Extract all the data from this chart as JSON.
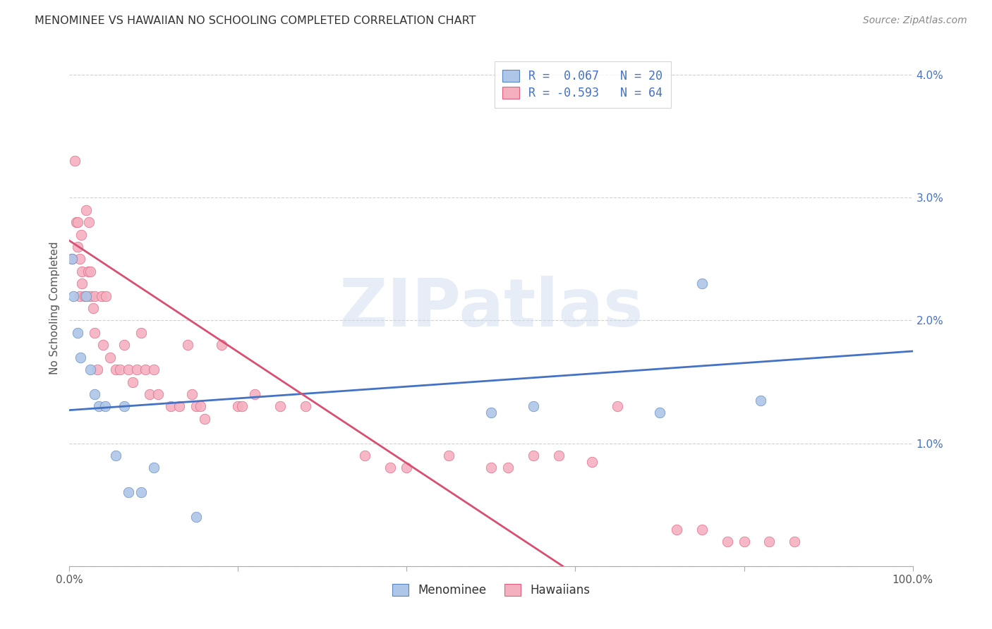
{
  "title": "MENOMINEE VS HAWAIIAN NO SCHOOLING COMPLETED CORRELATION CHART",
  "source": "Source: ZipAtlas.com",
  "ylabel": "No Schooling Completed",
  "watermark": "ZIPatlas",
  "xlim": [
    0.0,
    1.0
  ],
  "ylim": [
    0.0,
    0.042
  ],
  "xtick_positions": [
    0.0,
    0.2,
    0.4,
    0.6,
    0.8,
    1.0
  ],
  "xtick_labels": [
    "0.0%",
    "",
    "",
    "",
    "",
    "100.0%"
  ],
  "ytick_positions": [
    0.0,
    0.01,
    0.02,
    0.03,
    0.04
  ],
  "ytick_labels": [
    "",
    "1.0%",
    "2.0%",
    "3.0%",
    "4.0%"
  ],
  "menominee_R": 0.067,
  "menominee_N": 20,
  "hawaiians_R": -0.593,
  "hawaiians_N": 64,
  "menominee_scatter_color": "#aec6e8",
  "menominee_edge_color": "#5a86c0",
  "menominee_line_color": "#4472c4",
  "hawaiians_scatter_color": "#f5b0c0",
  "hawaiians_edge_color": "#e06080",
  "hawaiians_line_color": "#d94f72",
  "legend_label_menominee": "Menominee",
  "legend_label_hawaiians": "Hawaiians",
  "menominee_x": [
    0.003,
    0.005,
    0.01,
    0.013,
    0.02,
    0.025,
    0.03,
    0.035,
    0.042,
    0.055,
    0.065,
    0.07,
    0.085,
    0.1,
    0.15,
    0.5,
    0.55,
    0.7,
    0.75,
    0.82
  ],
  "menominee_y": [
    0.025,
    0.022,
    0.019,
    0.017,
    0.022,
    0.016,
    0.014,
    0.013,
    0.013,
    0.009,
    0.013,
    0.006,
    0.006,
    0.008,
    0.004,
    0.0125,
    0.013,
    0.0125,
    0.023,
    0.0135
  ],
  "hawaiians_x": [
    0.003,
    0.006,
    0.008,
    0.01,
    0.01,
    0.012,
    0.012,
    0.014,
    0.015,
    0.015,
    0.018,
    0.02,
    0.022,
    0.023,
    0.025,
    0.025,
    0.028,
    0.03,
    0.03,
    0.033,
    0.038,
    0.04,
    0.043,
    0.048,
    0.055,
    0.06,
    0.065,
    0.07,
    0.075,
    0.08,
    0.085,
    0.09,
    0.095,
    0.1,
    0.105,
    0.12,
    0.13,
    0.14,
    0.145,
    0.15,
    0.155,
    0.16,
    0.18,
    0.2,
    0.205,
    0.22,
    0.25,
    0.28,
    0.35,
    0.38,
    0.4,
    0.45,
    0.5,
    0.52,
    0.55,
    0.58,
    0.62,
    0.65,
    0.72,
    0.75,
    0.78,
    0.8,
    0.83,
    0.86
  ],
  "hawaiians_y": [
    0.025,
    0.033,
    0.028,
    0.028,
    0.026,
    0.025,
    0.022,
    0.027,
    0.023,
    0.024,
    0.022,
    0.029,
    0.024,
    0.028,
    0.024,
    0.022,
    0.021,
    0.022,
    0.019,
    0.016,
    0.022,
    0.018,
    0.022,
    0.017,
    0.016,
    0.016,
    0.018,
    0.016,
    0.015,
    0.016,
    0.019,
    0.016,
    0.014,
    0.016,
    0.014,
    0.013,
    0.013,
    0.018,
    0.014,
    0.013,
    0.013,
    0.012,
    0.018,
    0.013,
    0.013,
    0.014,
    0.013,
    0.013,
    0.009,
    0.008,
    0.008,
    0.009,
    0.008,
    0.008,
    0.009,
    0.009,
    0.0085,
    0.013,
    0.003,
    0.003,
    0.002,
    0.002,
    0.002,
    0.002
  ],
  "men_trend_x0": 0.0,
  "men_trend_x1": 1.0,
  "men_trend_y0": 0.0127,
  "men_trend_y1": 0.0175,
  "haw_trend_x0": 0.0,
  "haw_trend_x1": 0.585,
  "haw_trend_y0": 0.0265,
  "haw_trend_y1": 0.0
}
